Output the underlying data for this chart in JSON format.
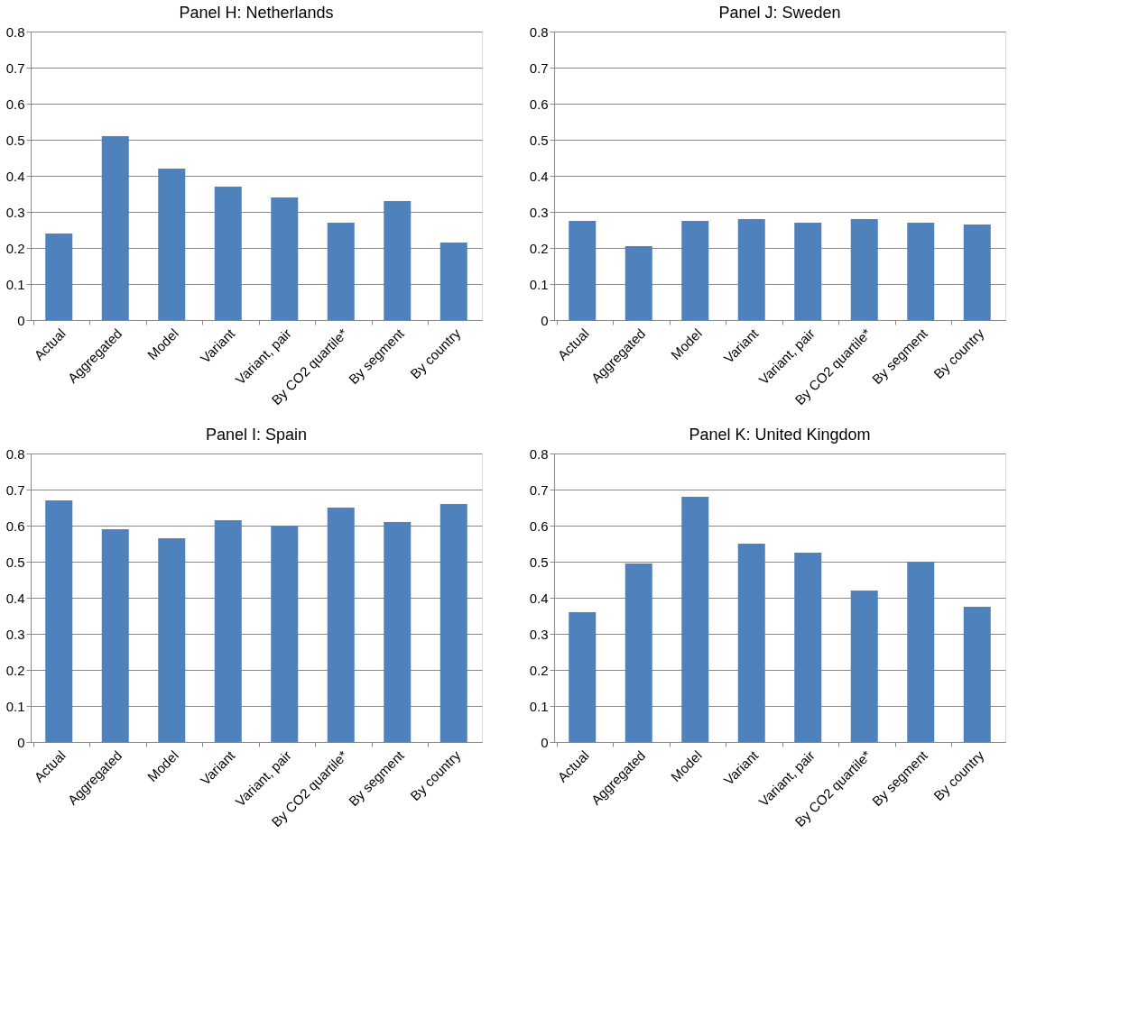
{
  "chart_data": [
    {
      "type": "bar",
      "title": "Panel H: Netherlands",
      "categories": [
        "Actual",
        "Aggregated",
        "Model",
        "Variant",
        "Variant, pair",
        "By CO2 quartile*",
        "By segment",
        "By country"
      ],
      "values": [
        0.24,
        0.51,
        0.42,
        0.37,
        0.34,
        0.27,
        0.33,
        0.215
      ],
      "color": "#4f81bd",
      "ylim": [
        0,
        0.8
      ],
      "yticks": [
        0,
        0.1,
        0.2,
        0.3,
        0.4,
        0.5,
        0.6,
        0.7,
        0.8
      ],
      "grid": "y"
    },
    {
      "type": "bar",
      "title": "Panel J: Sweden",
      "categories": [
        "Actual",
        "Aggregated",
        "Model",
        "Variant",
        "Variant, pair",
        "By CO2 quartile*",
        "By segment",
        "By country"
      ],
      "values": [
        0.275,
        0.205,
        0.275,
        0.28,
        0.27,
        0.28,
        0.27,
        0.265
      ],
      "color": "#4f81bd",
      "ylim": [
        0,
        0.8
      ],
      "yticks": [
        0,
        0.1,
        0.2,
        0.3,
        0.4,
        0.5,
        0.6,
        0.7,
        0.8
      ],
      "grid": "y"
    },
    {
      "type": "bar",
      "title": "Panel I: Spain",
      "categories": [
        "Actual",
        "Aggregated",
        "Model",
        "Variant",
        "Variant, pair",
        "By CO2 quartile*",
        "By segment",
        "By country"
      ],
      "values": [
        0.67,
        0.59,
        0.565,
        0.615,
        0.6,
        0.65,
        0.61,
        0.66
      ],
      "color": "#4f81bd",
      "ylim": [
        0,
        0.8
      ],
      "yticks": [
        0,
        0.1,
        0.2,
        0.3,
        0.4,
        0.5,
        0.6,
        0.7,
        0.8
      ],
      "grid": "y"
    },
    {
      "type": "bar",
      "title": "Panel K: United Kingdom",
      "categories": [
        "Actual",
        "Aggregated",
        "Model",
        "Variant",
        "Variant, pair",
        "By CO2 quartile*",
        "By segment",
        "By country"
      ],
      "values": [
        0.36,
        0.495,
        0.68,
        0.55,
        0.525,
        0.42,
        0.5,
        0.375
      ],
      "color": "#4f81bd",
      "ylim": [
        0,
        0.8
      ],
      "yticks": [
        0,
        0.1,
        0.2,
        0.3,
        0.4,
        0.5,
        0.6,
        0.7,
        0.8
      ],
      "grid": "y"
    }
  ]
}
